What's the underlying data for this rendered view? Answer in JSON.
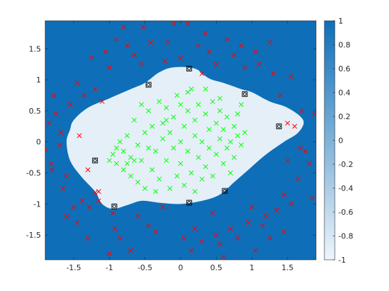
{
  "chart_data": {
    "type": "scatter",
    "title": "",
    "xlabel": "",
    "ylabel": "",
    "xlim": [
      -1.9,
      1.9
    ],
    "ylim": [
      -1.9,
      1.95
    ],
    "x_ticks": [
      -1.5,
      -1,
      -0.5,
      0,
      0.5,
      1,
      1.5
    ],
    "x_tick_labels": [
      "-1.5",
      "-1",
      "-0.5",
      "0",
      "0.5",
      "1",
      "1.5"
    ],
    "y_ticks": [
      1.5,
      1,
      0.5,
      0,
      -0.5,
      -1,
      -1.5
    ],
    "y_tick_labels": [
      "1.5",
      "1",
      "0.5",
      "0",
      "-0.5",
      "-1",
      "-1.5"
    ],
    "background": {
      "description": "decision regions",
      "outside_color": "#0e6fb8",
      "inside_color": "#e4eff8",
      "boundary": [
        [
          -1.55,
          0.2
        ],
        [
          -1.5,
          0.35
        ],
        [
          -1.3,
          0.55
        ],
        [
          -1.0,
          0.7
        ],
        [
          -0.7,
          0.85
        ],
        [
          -0.5,
          0.95
        ],
        [
          -0.3,
          1.12
        ],
        [
          -0.1,
          1.2
        ],
        [
          0.2,
          1.18
        ],
        [
          0.4,
          1.02
        ],
        [
          0.6,
          0.95
        ],
        [
          0.85,
          0.85
        ],
        [
          1.0,
          0.8
        ],
        [
          1.25,
          0.65
        ],
        [
          1.5,
          0.55
        ],
        [
          1.72,
          0.35
        ],
        [
          1.65,
          0.15
        ],
        [
          1.45,
          0.0
        ],
        [
          1.2,
          -0.2
        ],
        [
          0.95,
          -0.45
        ],
        [
          0.75,
          -0.65
        ],
        [
          0.55,
          -0.85
        ],
        [
          0.3,
          -0.95
        ],
        [
          0.0,
          -1.0
        ],
        [
          -0.3,
          -0.98
        ],
        [
          -0.55,
          -0.95
        ],
        [
          -0.75,
          -1.02
        ],
        [
          -0.95,
          -1.08
        ],
        [
          -1.1,
          -1.0
        ],
        [
          -1.2,
          -0.8
        ],
        [
          -1.4,
          -0.55
        ],
        [
          -1.55,
          -0.3
        ],
        [
          -1.6,
          0.0
        ]
      ]
    },
    "colorbar": {
      "ticks": [
        1,
        0.8,
        0.6,
        0.4,
        0.2,
        0,
        -0.2,
        -0.4,
        -0.6,
        -0.8,
        -1
      ],
      "tick_labels": [
        "1",
        "0.8",
        "0.6",
        "0.4",
        "0.2",
        "0",
        "-0.2",
        "-0.4",
        "-0.6",
        "-0.8",
        "-1"
      ],
      "range": [
        -1,
        1
      ],
      "color_top": "#0e6fb8",
      "color_bottom": "#eef5fb"
    },
    "series": [
      {
        "marker": "x",
        "color": "#ff0000",
        "points": [
          [
            -1.9,
            -0.12
          ],
          [
            -1.85,
            0.3
          ],
          [
            -1.8,
            -0.45
          ],
          [
            -1.78,
            0.75
          ],
          [
            -1.75,
            0.45
          ],
          [
            -1.7,
            -0.05
          ],
          [
            -1.65,
            -0.75
          ],
          [
            -1.6,
            -0.55
          ],
          [
            -1.55,
            0.6
          ],
          [
            -1.45,
            0.95
          ],
          [
            -1.42,
            0.1
          ],
          [
            -1.38,
            -0.95
          ],
          [
            -1.3,
            -0.45
          ],
          [
            -1.28,
            -1.05
          ],
          [
            -1.25,
            1.35
          ],
          [
            -1.2,
            -0.82
          ],
          [
            -1.15,
            -0.95
          ],
          [
            -1.1,
            0.65
          ],
          [
            -1.05,
            1.45
          ],
          [
            -1.0,
            1.2
          ],
          [
            -0.95,
            -1.15
          ],
          [
            -0.92,
            -1.4
          ],
          [
            -0.85,
            -1.55
          ],
          [
            -0.8,
            1.85
          ],
          [
            -0.75,
            1.55
          ],
          [
            -0.7,
            -1.75
          ],
          [
            -0.65,
            1.4
          ],
          [
            -0.55,
            1.25
          ],
          [
            -0.52,
            1.85
          ],
          [
            -0.45,
            -1.35
          ],
          [
            -0.42,
            1.6
          ],
          [
            -0.35,
            -1.45
          ],
          [
            -0.25,
            -1.05
          ],
          [
            -0.22,
            1.3
          ],
          [
            -0.18,
            1.6
          ],
          [
            -0.1,
            1.9
          ],
          [
            0.0,
            1.35
          ],
          [
            0.05,
            -1.55
          ],
          [
            0.1,
            1.9
          ],
          [
            0.2,
            -1.4
          ],
          [
            0.25,
            1.55
          ],
          [
            0.3,
            -1.6
          ],
          [
            0.35,
            1.75
          ],
          [
            0.4,
            1.45
          ],
          [
            0.45,
            -1.15
          ],
          [
            0.5,
            1.25
          ],
          [
            0.55,
            -1.65
          ],
          [
            0.6,
            -1.85
          ],
          [
            0.65,
            1.65
          ],
          [
            0.7,
            -1.4
          ],
          [
            0.75,
            1.4
          ],
          [
            0.8,
            -1.55
          ],
          [
            0.85,
            1.55
          ],
          [
            0.9,
            1.2
          ],
          [
            0.95,
            -1.3
          ],
          [
            1.0,
            -1.05
          ],
          [
            1.05,
            1.45
          ],
          [
            1.1,
            1.25
          ],
          [
            1.15,
            -1.35
          ],
          [
            1.2,
            -1.2
          ],
          [
            1.25,
            -1.55
          ],
          [
            1.3,
            1.1
          ],
          [
            1.35,
            -1.1
          ],
          [
            1.4,
            0.75
          ],
          [
            1.45,
            -0.85
          ],
          [
            1.5,
            -0.3
          ],
          [
            1.55,
            1.05
          ],
          [
            1.6,
            0.25
          ],
          [
            1.65,
            -0.6
          ],
          [
            1.68,
            -0.1
          ],
          [
            1.7,
            0.5
          ],
          [
            1.75,
            -0.15
          ],
          [
            1.8,
            -0.35
          ],
          [
            1.85,
            -0.9
          ],
          [
            1.88,
            0.45
          ],
          [
            -1.82,
            -0.35
          ],
          [
            -1.68,
            0.15
          ],
          [
            -1.6,
            -1.2
          ],
          [
            -1.5,
            -1.05
          ],
          [
            -1.45,
            -1.3
          ],
          [
            -1.35,
            0.75
          ],
          [
            -1.3,
            -1.55
          ],
          [
            -1.2,
            0.85
          ],
          [
            -1.0,
            -1.8
          ],
          [
            -0.9,
            1.65
          ],
          [
            -0.6,
            -1.2
          ],
          [
            -0.2,
            -1.95
          ],
          [
            0.15,
            -1.75
          ],
          [
            0.5,
            -1.5
          ],
          [
            1.05,
            -1.75
          ],
          [
            1.25,
            1.6
          ],
          [
            1.45,
            -1.45
          ],
          [
            1.55,
            -1.0
          ],
          [
            0.3,
            1.1
          ],
          [
            -1.15,
            -0.8
          ],
          [
            1.5,
            0.3
          ]
        ]
      },
      {
        "marker": "x",
        "color": "#00ff00",
        "points": [
          [
            -1.0,
            -0.3
          ],
          [
            -0.95,
            -0.2
          ],
          [
            -0.9,
            -0.1
          ],
          [
            -0.9,
            -0.35
          ],
          [
            -0.85,
            0.0
          ],
          [
            -0.8,
            -0.15
          ],
          [
            -0.8,
            -0.45
          ],
          [
            -0.75,
            0.1
          ],
          [
            -0.7,
            -0.25
          ],
          [
            -0.7,
            -0.55
          ],
          [
            -0.65,
            0.35
          ],
          [
            -0.6,
            -0.05
          ],
          [
            -0.6,
            -0.65
          ],
          [
            -0.55,
            -0.3
          ],
          [
            -0.5,
            0.15
          ],
          [
            -0.5,
            -0.75
          ],
          [
            -0.45,
            -0.1
          ],
          [
            -0.45,
            0.5
          ],
          [
            -0.4,
            -0.45
          ],
          [
            -0.4,
            0.25
          ],
          [
            -0.35,
            -0.15
          ],
          [
            -0.3,
            0.65
          ],
          [
            -0.3,
            -0.6
          ],
          [
            -0.25,
            0.05
          ],
          [
            -0.25,
            0.3
          ],
          [
            -0.2,
            -0.3
          ],
          [
            -0.2,
            0.55
          ],
          [
            -0.15,
            -0.75
          ],
          [
            -0.15,
            0.15
          ],
          [
            -0.1,
            0.4
          ],
          [
            -0.1,
            -0.1
          ],
          [
            -0.05,
            -0.55
          ],
          [
            -0.05,
            0.75
          ],
          [
            0.0,
            0.0
          ],
          [
            0.0,
            -0.35
          ],
          [
            0.05,
            0.25
          ],
          [
            0.05,
            -0.7
          ],
          [
            0.1,
            0.5
          ],
          [
            0.1,
            -0.15
          ],
          [
            0.15,
            0.85
          ],
          [
            0.15,
            -0.5
          ],
          [
            0.2,
            0.1
          ],
          [
            0.2,
            0.35
          ],
          [
            0.25,
            -0.25
          ],
          [
            0.25,
            0.6
          ],
          [
            0.3,
            -0.6
          ],
          [
            0.3,
            0.0
          ],
          [
            0.35,
            0.45
          ],
          [
            0.35,
            -0.4
          ],
          [
            0.4,
            0.2
          ],
          [
            0.4,
            -0.1
          ],
          [
            0.45,
            0.65
          ],
          [
            0.45,
            -0.55
          ],
          [
            0.5,
            0.3
          ],
          [
            0.5,
            -0.2
          ],
          [
            0.55,
            0.05
          ],
          [
            0.55,
            0.5
          ],
          [
            0.6,
            -0.35
          ],
          [
            0.6,
            0.2
          ],
          [
            0.65,
            -0.1
          ],
          [
            0.65,
            0.4
          ],
          [
            0.7,
            -0.5
          ],
          [
            0.7,
            0.0
          ],
          [
            0.75,
            0.25
          ],
          [
            0.75,
            -0.25
          ],
          [
            0.8,
            0.45
          ],
          [
            0.8,
            0.1
          ],
          [
            0.85,
            -0.05
          ],
          [
            0.85,
            0.6
          ],
          [
            0.9,
            0.15
          ],
          [
            -0.55,
            0.6
          ],
          [
            -0.65,
            -0.3
          ],
          [
            -0.35,
            -0.8
          ],
          [
            0.0,
            0.6
          ],
          [
            0.2,
            -0.8
          ],
          [
            -0.75,
            -0.35
          ],
          [
            0.55,
            0.7
          ],
          [
            0.1,
            0.8
          ],
          [
            -0.2,
            0.35
          ],
          [
            0.35,
            0.85
          ]
        ]
      },
      {
        "marker": "square-circle",
        "color": "#000000",
        "points": [
          [
            -0.45,
            0.92
          ],
          [
            0.12,
            1.18
          ],
          [
            0.9,
            0.77
          ],
          [
            1.38,
            0.25
          ],
          [
            -1.2,
            -0.3
          ],
          [
            -0.93,
            -1.04
          ],
          [
            0.12,
            -0.98
          ],
          [
            0.62,
            -0.79
          ]
        ]
      }
    ]
  }
}
